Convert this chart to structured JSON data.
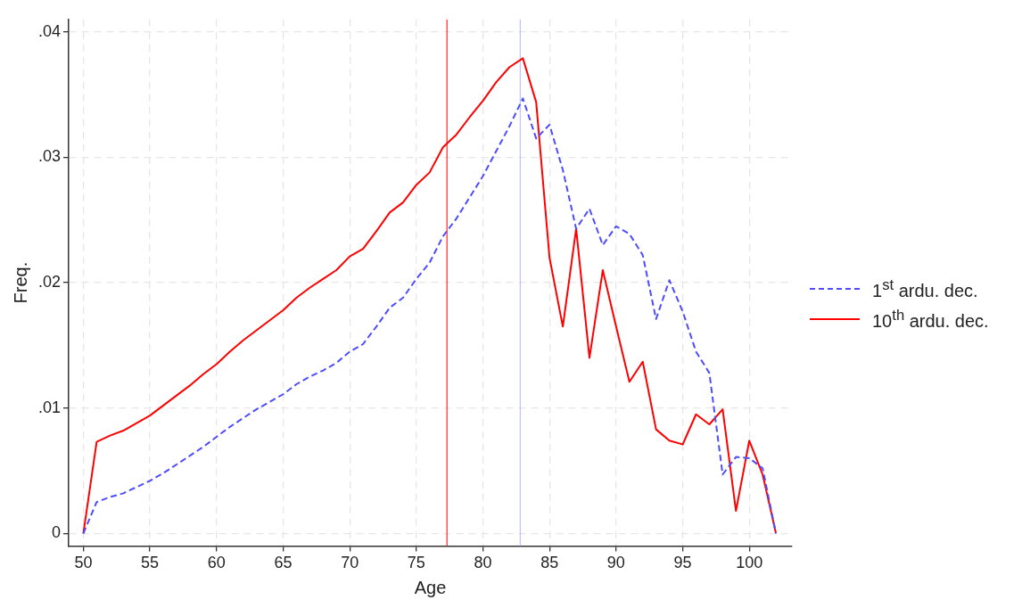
{
  "chart_data": {
    "type": "line",
    "xlabel": "Age",
    "ylabel": "Freq.",
    "x": [
      50,
      51,
      52,
      53,
      54,
      55,
      56,
      57,
      58,
      59,
      60,
      61,
      62,
      63,
      64,
      65,
      66,
      67,
      68,
      69,
      70,
      71,
      72,
      73,
      74,
      75,
      76,
      77,
      78,
      79,
      80,
      81,
      82,
      83,
      84,
      85,
      86,
      87,
      88,
      89,
      90,
      91,
      92,
      93,
      94,
      95,
      96,
      97,
      98,
      99,
      100,
      101,
      102
    ],
    "series": [
      {
        "name": "1$^{st}$ ardu. dec.",
        "color": "#4d4dff",
        "line_style": "dashed",
        "values": [
          0,
          0.0025,
          0.0029,
          0.0032,
          0.0037,
          0.0042,
          0.0048,
          0.0055,
          0.0062,
          0.0069,
          0.0077,
          0.0085,
          0.0092,
          0.0099,
          0.0105,
          0.0111,
          0.0119,
          0.0125,
          0.013,
          0.0136,
          0.0145,
          0.0151,
          0.0165,
          0.018,
          0.0188,
          0.0203,
          0.0216,
          0.0237,
          0.0251,
          0.0268,
          0.0285,
          0.0305,
          0.0325,
          0.0347,
          0.0315,
          0.0326,
          0.029,
          0.0243,
          0.0259,
          0.023,
          0.0245,
          0.0239,
          0.0222,
          0.0171,
          0.0202,
          0.0177,
          0.0145,
          0.0128,
          0.0047,
          0.0061,
          0.006,
          0.0052,
          0
        ]
      },
      {
        "name": "10$^{th}$ ardu. dec.",
        "color": "#ff0000",
        "line_style": "solid",
        "values": [
          0,
          0.0073,
          0.0078,
          0.0082,
          0.0088,
          0.0094,
          0.0102,
          0.011,
          0.0118,
          0.0127,
          0.0135,
          0.0145,
          0.0154,
          0.0162,
          0.017,
          0.0178,
          0.0188,
          0.0196,
          0.0203,
          0.021,
          0.0221,
          0.0227,
          0.0241,
          0.0256,
          0.0264,
          0.0278,
          0.0288,
          0.0308,
          0.0318,
          0.0332,
          0.0345,
          0.036,
          0.0372,
          0.0379,
          0.0344,
          0.022,
          0.0165,
          0.0243,
          0.014,
          0.021,
          0.0165,
          0.0121,
          0.0137,
          0.0083,
          0.0074,
          0.0071,
          0.0095,
          0.0087,
          0.0099,
          0.0018,
          0.0074,
          0.0047,
          0
        ]
      }
    ],
    "xlim": [
      48.9,
      103.2
    ],
    "xticks": [
      50,
      55,
      60,
      65,
      70,
      75,
      80,
      85,
      90,
      95,
      100
    ],
    "ylim": [
      -0.001,
      0.041
    ],
    "yticks": [
      0,
      {
        "value": 0.01,
        "label": ".01"
      },
      {
        "value": 0.02,
        "label": ".02"
      },
      {
        "value": 0.03,
        "label": ".03"
      },
      {
        "value": 0.04,
        "label": ".04"
      }
    ],
    "ref_lines": [
      {
        "axis": "x",
        "value": 77.3,
        "color": "#ff0000"
      },
      {
        "axis": "x",
        "value": 82.8,
        "color": "#b3b3ff"
      }
    ],
    "grid": true,
    "legend": "right",
    "marker": "none"
  }
}
